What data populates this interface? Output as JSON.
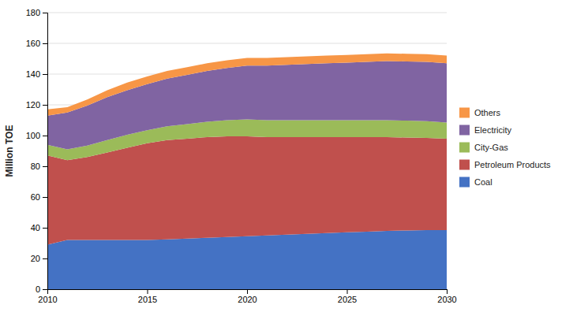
{
  "chart_data": {
    "type": "area",
    "stacked": true,
    "ylabel": "Million TOE",
    "x": [
      2010,
      2011,
      2012,
      2013,
      2014,
      2015,
      2016,
      2017,
      2018,
      2019,
      2020,
      2021,
      2022,
      2023,
      2024,
      2025,
      2026,
      2027,
      2028,
      2029,
      2030
    ],
    "series": [
      {
        "name": "Coal",
        "color": "#4472C4",
        "values": [
          29,
          32,
          32,
          32,
          32,
          32,
          32.5,
          33,
          33.5,
          34,
          34.5,
          35,
          35.5,
          36,
          36.5,
          37,
          37.5,
          38,
          38.2,
          38.4,
          38.5
        ]
      },
      {
        "name": "Petroleum Products",
        "color": "#C0504D",
        "values": [
          58,
          52,
          54,
          57,
          60,
          63,
          64.5,
          65,
          65.5,
          65.5,
          65,
          64,
          63.5,
          63,
          62.5,
          62,
          61.5,
          61,
          60.5,
          60,
          59.5
        ]
      },
      {
        "name": "City-Gas",
        "color": "#9BBB59",
        "values": [
          7,
          7,
          7.5,
          8,
          8.5,
          8.5,
          9,
          9.5,
          10,
          10.5,
          11,
          11,
          11,
          11,
          11,
          11,
          11,
          11,
          11,
          11,
          10.5
        ]
      },
      {
        "name": "Electricity",
        "color": "#8064A2",
        "values": [
          19,
          24,
          26,
          28,
          29,
          30,
          31,
          32,
          33,
          34,
          35,
          35.5,
          36,
          36.5,
          37,
          37.5,
          38,
          38.5,
          38.5,
          38.5,
          38.5
        ]
      },
      {
        "name": "Others",
        "color": "#F79646",
        "values": [
          4,
          3.5,
          4,
          4.5,
          5,
          5,
          5,
          5,
          5,
          5,
          5,
          5,
          5,
          5,
          5,
          5,
          5,
          5,
          5,
          5,
          5
        ]
      }
    ],
    "xlim": [
      2010,
      2030
    ],
    "xticks": [
      2010,
      2015,
      2020,
      2025,
      2030
    ],
    "ylim": [
      0,
      180
    ],
    "yticks": [
      0,
      20,
      40,
      60,
      80,
      100,
      120,
      140,
      160,
      180
    ],
    "grid": true,
    "legend": "right"
  }
}
